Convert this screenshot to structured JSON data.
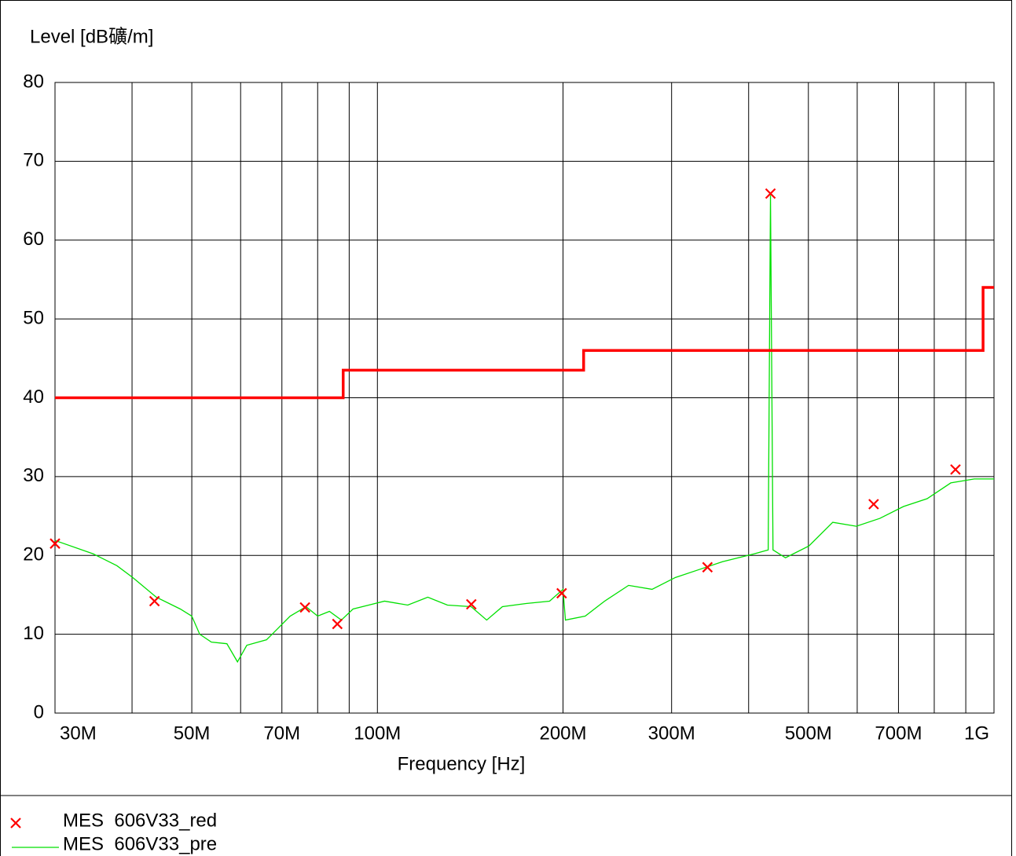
{
  "chart_data": {
    "type": "line",
    "ylabel": "Level [dB礦/m]",
    "xlabel": "Frequency [Hz]",
    "log_x": true,
    "grid": true,
    "xlim": [
      30000000,
      1000000000
    ],
    "ylim": [
      0,
      80
    ],
    "yticks": [
      0,
      10,
      20,
      30,
      40,
      50,
      60,
      70,
      80
    ],
    "xticks": [
      {
        "value": 30000000,
        "label": "30M"
      },
      {
        "value": 50000000,
        "label": "50M"
      },
      {
        "value": 70000000,
        "label": "70M"
      },
      {
        "value": 100000000,
        "label": "100M"
      },
      {
        "value": 200000000,
        "label": "200M"
      },
      {
        "value": 300000000,
        "label": "300M"
      },
      {
        "value": 500000000,
        "label": "500M"
      },
      {
        "value": 700000000,
        "label": "700M"
      },
      {
        "value": 1000000000,
        "label": "1G"
      }
    ],
    "xminor": [
      40000000,
      60000000,
      80000000,
      90000000,
      400000000,
      600000000,
      800000000,
      900000000
    ],
    "series": [
      {
        "name": "MES  606V33_red",
        "color": "#ff0000",
        "marker": "x",
        "x": [
          30000000,
          43500000,
          76300000,
          86100000,
          142000000,
          199000000,
          343000000,
          434000000,
          638000000,
          866000000
        ],
        "values": [
          21.5,
          14.2,
          13.4,
          11.3,
          13.8,
          15.2,
          18.5,
          65.9,
          26.5,
          30.9
        ]
      },
      {
        "name": "MES  606V33_pre",
        "color": "#00e000",
        "x": [
          30000000,
          34600000,
          37800000,
          40100000,
          43800000,
          47900000,
          50000000,
          51500000,
          53800000,
          57000000,
          59300000,
          61400000,
          66100000,
          69100000,
          72200000,
          76600000,
          80000000,
          83600000,
          87400000,
          91300000,
          96800000,
          102700000,
          112000000,
          120700000,
          129900000,
          141900000,
          150400000,
          159500000,
          174200000,
          190200000,
          200000000,
          201800000,
          217300000,
          233600000,
          255500000,
          278900000,
          304300000,
          332300000,
          362800000,
          408300000,
          430300000,
          434000000,
          438100000,
          459000000,
          501000000,
          547600000,
          598000000,
          653000000,
          713000000,
          779000000,
          851000000,
          929000000,
          1000000000
        ],
        "values": [
          21.9,
          20.2,
          18.7,
          17.2,
          14.7,
          13.2,
          12.3,
          10.0,
          9.0,
          8.8,
          6.5,
          8.6,
          9.3,
          10.8,
          12.3,
          13.5,
          12.3,
          12.9,
          11.8,
          13.2,
          13.7,
          14.2,
          13.7,
          14.7,
          13.7,
          13.5,
          11.8,
          13.5,
          13.9,
          14.2,
          15.7,
          11.8,
          12.3,
          14.2,
          16.2,
          15.7,
          17.2,
          18.2,
          19.2,
          20.2,
          20.7,
          65.7,
          20.7,
          19.7,
          21.2,
          24.2,
          23.7,
          24.7,
          26.2,
          27.2,
          29.2,
          29.7,
          29.7
        ]
      },
      {
        "color": "#ff0000",
        "x": [
          30000000,
          88000000,
          88000000,
          216000000,
          216000000,
          960000000,
          960000000,
          1000000000
        ],
        "values": [
          40,
          40,
          43.5,
          43.5,
          46,
          46,
          54,
          54
        ]
      }
    ]
  }
}
